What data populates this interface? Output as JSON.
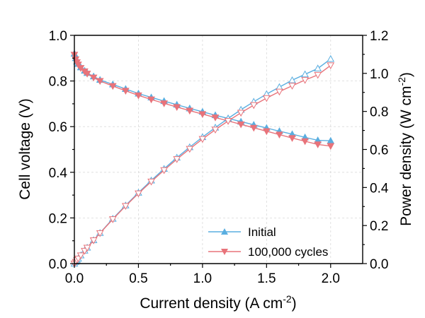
{
  "chart_data": {
    "type": "line",
    "xlabel": "Current density (A cm",
    "xlabel_sup": "-2",
    "xlabel_end": ")",
    "ylabel": "Cell voltage (V)",
    "y2label": "Power density (W cm",
    "y2label_sup": "-2",
    "y2label_end": ")",
    "xlim": [
      0,
      2.25
    ],
    "ylim": [
      0,
      1.0
    ],
    "y2lim": [
      0,
      1.2
    ],
    "xticks": [
      "0.0",
      "0.5",
      "1.0",
      "1.5",
      "2.0"
    ],
    "yticks": [
      "0.0",
      "0.2",
      "0.4",
      "0.6",
      "0.8",
      "1.0"
    ],
    "y2ticks": [
      "0.0",
      "0.2",
      "0.4",
      "0.6",
      "0.8",
      "1.0",
      "1.2"
    ],
    "grid": true,
    "legend_position": "bottom-right",
    "x": [
      0.0,
      0.01,
      0.02,
      0.03,
      0.05,
      0.08,
      0.1,
      0.15,
      0.2,
      0.3,
      0.4,
      0.5,
      0.6,
      0.7,
      0.8,
      0.9,
      1.0,
      1.1,
      1.2,
      1.3,
      1.4,
      1.5,
      1.6,
      1.7,
      1.8,
      1.9,
      2.0
    ],
    "series": [
      {
        "name": "Initial",
        "color": "#5aaee0",
        "marker": "triangle-up",
        "axis": "left",
        "values": [
          0.92,
          0.9,
          0.885,
          0.875,
          0.86,
          0.845,
          0.835,
          0.82,
          0.805,
          0.785,
          0.765,
          0.745,
          0.728,
          0.712,
          0.696,
          0.68,
          0.665,
          0.65,
          0.636,
          0.622,
          0.608,
          0.594,
          0.58,
          0.567,
          0.553,
          0.54,
          0.538
        ]
      },
      {
        "name": "100,000 cycles",
        "color": "#e8737a",
        "marker": "triangle-down",
        "axis": "left",
        "values": [
          0.915,
          0.895,
          0.882,
          0.872,
          0.857,
          0.842,
          0.832,
          0.815,
          0.8,
          0.778,
          0.757,
          0.737,
          0.719,
          0.702,
          0.686,
          0.67,
          0.655,
          0.64,
          0.625,
          0.61,
          0.595,
          0.58,
          0.565,
          0.55,
          0.536,
          0.522,
          0.515
        ]
      },
      {
        "name": "Initial",
        "color": "#5aaee0",
        "marker": "triangle-up-open",
        "axis": "right",
        "values": [
          0.0,
          0.009,
          0.018,
          0.026,
          0.043,
          0.068,
          0.084,
          0.123,
          0.161,
          0.236,
          0.306,
          0.373,
          0.437,
          0.498,
          0.557,
          0.612,
          0.665,
          0.715,
          0.763,
          0.809,
          0.851,
          0.891,
          0.928,
          0.964,
          0.995,
          1.026,
          1.076
        ]
      },
      {
        "name": "100,000 cycles",
        "color": "#e8737a",
        "marker": "triangle-down-open",
        "axis": "right",
        "values": [
          0.0,
          0.009,
          0.018,
          0.026,
          0.043,
          0.067,
          0.083,
          0.122,
          0.16,
          0.233,
          0.303,
          0.369,
          0.431,
          0.491,
          0.549,
          0.603,
          0.655,
          0.704,
          0.75,
          0.793,
          0.833,
          0.87,
          0.904,
          0.935,
          0.965,
          0.992,
          1.042
        ]
      }
    ],
    "legend": [
      {
        "label": "Initial",
        "color": "#5aaee0",
        "marker": "triangle-up"
      },
      {
        "label": "100,000 cycles",
        "color": "#e8737a",
        "marker": "triangle-down"
      }
    ]
  }
}
